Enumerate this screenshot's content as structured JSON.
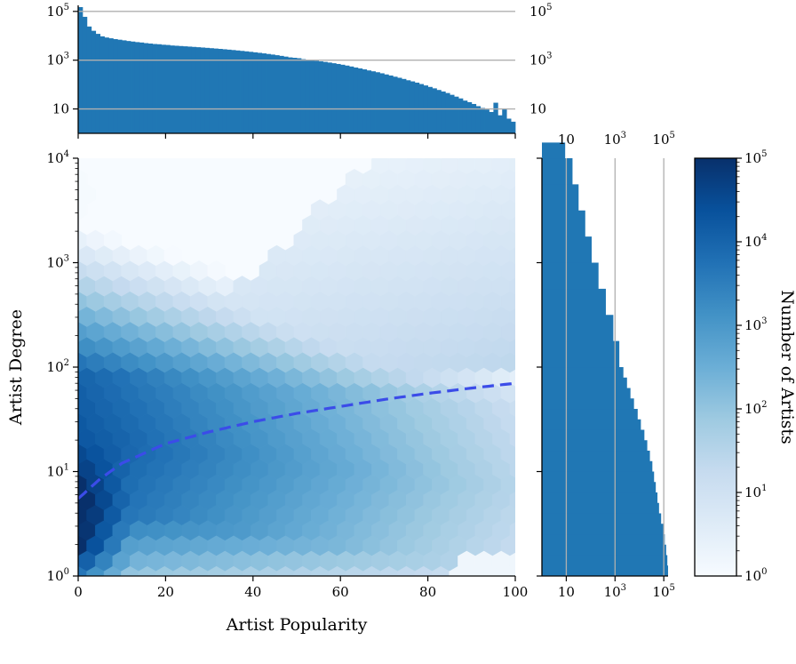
{
  "chart_data": [
    {
      "type": "heatmap",
      "subtype": "hexbin",
      "xlabel": "Artist Popularity",
      "ylabel": "Artist Degree",
      "xlim": [
        0,
        100
      ],
      "ylim": [
        1,
        10000
      ],
      "yscale": "log",
      "x_ticks": [
        "0",
        "20",
        "40",
        "60",
        "80",
        "100"
      ],
      "y_ticks": [
        {
          "base": "10",
          "exp": "0"
        },
        {
          "base": "10",
          "exp": "1"
        },
        {
          "base": "10",
          "exp": "2"
        },
        {
          "base": "10",
          "exp": "3"
        },
        {
          "base": "10",
          "exp": "4"
        }
      ],
      "colormap": "Blues",
      "color_scale": "log",
      "trend_line": {
        "style": "dashed",
        "color": "#3b4ce8",
        "x": [
          0,
          5,
          10,
          20,
          30,
          40,
          50,
          60,
          70,
          80,
          90,
          100
        ],
        "y": [
          5.5,
          8.5,
          12,
          18.5,
          24,
          30,
          36,
          42,
          49,
          56,
          63,
          70
        ]
      },
      "grid": false
    },
    {
      "type": "bar",
      "role": "marginal histogram of Artist Popularity (top)",
      "yscale": "log",
      "ylim": [
        1,
        150000
      ],
      "x_range": [
        0,
        100
      ],
      "y_ticks": [
        {
          "base": "10",
          "exp": "5"
        },
        {
          "base": "10",
          "exp": "3"
        },
        {
          "base": "10",
          "exp": ""
        }
      ],
      "bin_width": 1,
      "values": [
        150000,
        60000,
        24000,
        16000,
        12000,
        9500,
        8500,
        7900,
        7300,
        6900,
        6500,
        6100,
        5800,
        5500,
        5300,
        5000,
        4800,
        4600,
        4500,
        4300,
        4200,
        4000,
        3900,
        3800,
        3700,
        3600,
        3500,
        3400,
        3300,
        3200,
        3100,
        3000,
        2900,
        2800,
        2700,
        2600,
        2500,
        2400,
        2300,
        2200,
        2100,
        2000,
        1900,
        1800,
        1700,
        1600,
        1500,
        1400,
        1300,
        1250,
        1200,
        1100,
        1050,
        1000,
        950,
        900,
        850,
        800,
        750,
        700,
        650,
        600,
        550,
        500,
        460,
        420,
        380,
        350,
        320,
        290,
        260,
        235,
        210,
        190,
        170,
        150,
        135,
        120,
        105,
        92,
        80,
        70,
        60,
        52,
        45,
        38,
        32,
        27,
        22,
        19,
        16,
        13,
        11,
        9.5,
        7.5,
        18,
        5.5,
        10,
        4,
        3
      ],
      "color": "#2077b4",
      "grid": "horizontal"
    },
    {
      "type": "bar",
      "orientation": "horizontal",
      "role": "marginal histogram of Artist Degree (right)",
      "xscale": "log",
      "xlim": [
        1,
        150000
      ],
      "x_ticks": [
        {
          "base": "10",
          "exp": ""
        },
        {
          "base": "10",
          "exp": "3"
        },
        {
          "base": "10",
          "exp": "5"
        }
      ],
      "bins_log10": [
        [
          0.0,
          0.1,
          150000
        ],
        [
          0.1,
          0.2,
          140000
        ],
        [
          0.2,
          0.3,
          125000
        ],
        [
          0.3,
          0.4,
          110000
        ],
        [
          0.4,
          0.5,
          95000
        ],
        [
          0.5,
          0.6,
          78000
        ],
        [
          0.6,
          0.7,
          64000
        ],
        [
          0.7,
          0.8,
          55000
        ],
        [
          0.8,
          0.9,
          47000
        ],
        [
          0.9,
          1.0,
          40000
        ],
        [
          1.0,
          1.1,
          34000
        ],
        [
          1.1,
          1.2,
          27000
        ],
        [
          1.2,
          1.3,
          21000
        ],
        [
          1.3,
          1.4,
          16000
        ],
        [
          1.4,
          1.5,
          11500
        ],
        [
          1.5,
          1.6,
          8500
        ],
        [
          1.6,
          1.7,
          6000
        ],
        [
          1.7,
          1.8,
          4300
        ],
        [
          1.8,
          1.9,
          3100
        ],
        [
          1.9,
          2.0,
          2200
        ],
        [
          2.0,
          2.25,
          1500
        ],
        [
          2.25,
          2.5,
          850
        ],
        [
          2.5,
          2.75,
          420
        ],
        [
          2.75,
          3.0,
          210
        ],
        [
          3.0,
          3.25,
          110
        ],
        [
          3.25,
          3.5,
          60
        ],
        [
          3.5,
          3.75,
          32
        ],
        [
          3.75,
          4.0,
          18
        ],
        [
          4.0,
          4.15,
          9
        ]
      ],
      "color": "#2077b4",
      "grid": "vertical"
    },
    {
      "type": "colorbar",
      "label": "Number of Artists",
      "scale": "log",
      "range": [
        1,
        100000
      ],
      "ticks": [
        {
          "base": "10",
          "exp": "0"
        },
        {
          "base": "10",
          "exp": "1"
        },
        {
          "base": "10",
          "exp": "2"
        },
        {
          "base": "10",
          "exp": "3"
        },
        {
          "base": "10",
          "exp": "4"
        },
        {
          "base": "10",
          "exp": "5"
        }
      ],
      "colormap": "Blues"
    }
  ]
}
